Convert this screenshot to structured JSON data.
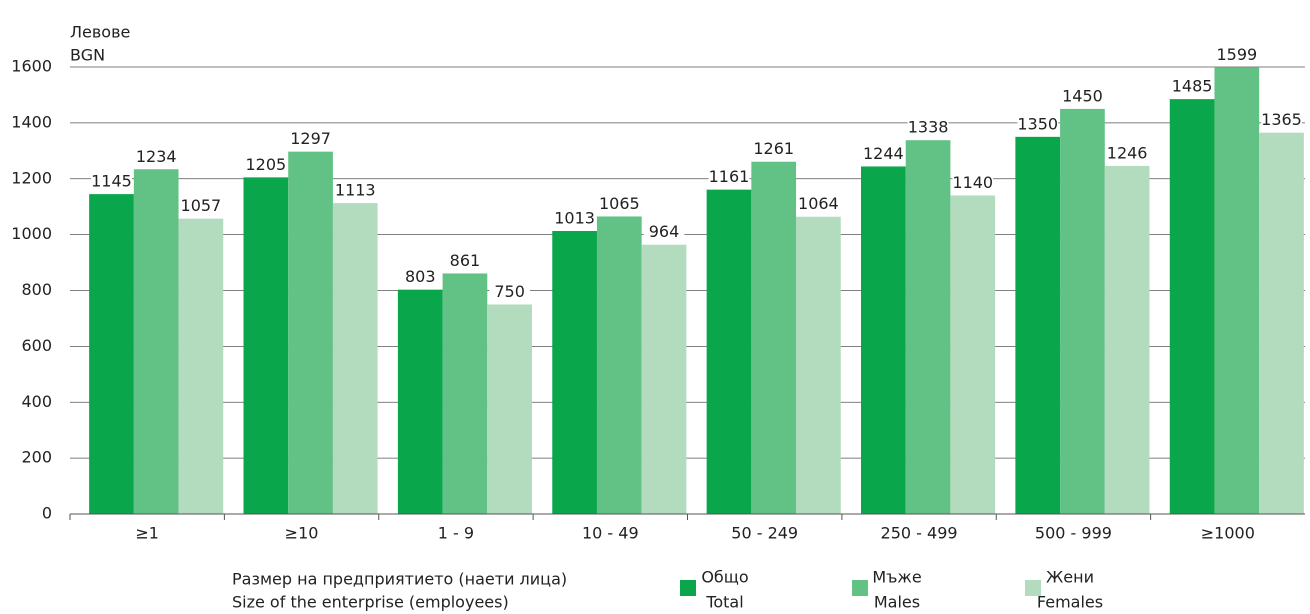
{
  "chart_data": {
    "type": "bar",
    "y_label": [
      "Левове",
      "BGN"
    ],
    "x_label": [
      "Размер на предприятието (наети лица)",
      "Size of the enterprise (employees)"
    ],
    "categories": [
      "≥1",
      "≥10",
      "1 - 9",
      "10 - 49",
      "50 - 249",
      "250 - 499",
      "500 - 999",
      "≥1000"
    ],
    "series": [
      {
        "name": [
          "Общо",
          "Total"
        ],
        "color": "#0aa64b",
        "values": [
          1145,
          1205,
          803,
          1013,
          1161,
          1244,
          1350,
          1485
        ]
      },
      {
        "name": [
          "Мъже",
          "Males"
        ],
        "color": "#62c185",
        "values": [
          1234,
          1297,
          861,
          1065,
          1261,
          1338,
          1450,
          1599
        ]
      },
      {
        "name": [
          "Жени",
          "Females"
        ],
        "color": "#b2dcbd",
        "values": [
          1057,
          1113,
          750,
          964,
          1064,
          1140,
          1246,
          1365
        ]
      }
    ],
    "ylim": [
      0,
      1600
    ],
    "yticks": [
      0,
      200,
      400,
      600,
      800,
      1000,
      1200,
      1400,
      1600
    ],
    "grid": true
  }
}
